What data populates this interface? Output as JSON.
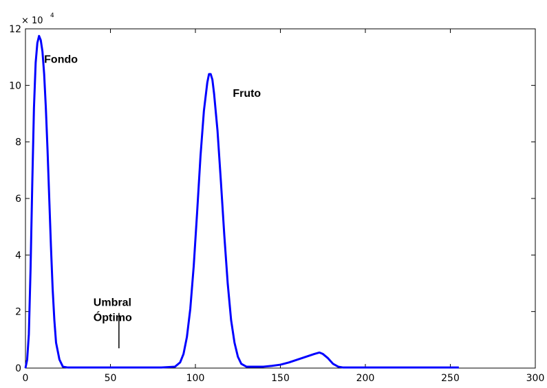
{
  "chart_data": {
    "type": "line",
    "title": "",
    "xlabel": "",
    "ylabel": "",
    "xlim": [
      0,
      300
    ],
    "ylim": [
      0,
      12
    ],
    "y_multiplier": {
      "base": "× 10",
      "exponent": "4"
    },
    "grid": false,
    "x_ticks": [
      "0",
      "50",
      "100",
      "150",
      "200",
      "250",
      "300"
    ],
    "y_ticks": [
      "0",
      "2",
      "4",
      "6",
      "8",
      "10",
      "12"
    ],
    "line_color": "#0000ff",
    "series": [
      {
        "x": [
          0,
          1,
          2,
          3,
          4,
          5,
          6,
          7,
          8,
          9,
          10,
          11,
          12,
          13,
          14,
          15,
          16,
          17,
          18,
          20,
          22,
          25,
          30,
          40,
          50,
          60,
          70,
          80,
          88,
          91,
          93,
          95,
          97,
          99,
          101,
          103,
          105,
          107,
          108,
          109,
          110,
          111,
          113,
          115,
          117,
          119,
          121,
          123,
          125,
          127,
          130,
          135,
          140,
          145,
          150,
          155,
          160,
          165,
          170,
          173,
          175,
          178,
          181,
          184,
          187,
          190,
          200,
          220,
          240,
          255
        ],
        "values": [
          0.0,
          0.3,
          1.2,
          3.5,
          6.5,
          9.2,
          10.8,
          11.5,
          11.75,
          11.6,
          11.2,
          10.4,
          9.2,
          7.7,
          6.0,
          4.3,
          2.8,
          1.7,
          0.9,
          0.3,
          0.05,
          0.02,
          0.02,
          0.02,
          0.02,
          0.02,
          0.02,
          0.02,
          0.05,
          0.2,
          0.5,
          1.1,
          2.1,
          3.6,
          5.5,
          7.5,
          9.1,
          10.1,
          10.4,
          10.4,
          10.2,
          9.7,
          8.4,
          6.6,
          4.7,
          3.0,
          1.7,
          0.9,
          0.4,
          0.15,
          0.05,
          0.05,
          0.05,
          0.08,
          0.12,
          0.2,
          0.3,
          0.4,
          0.5,
          0.55,
          0.5,
          0.35,
          0.15,
          0.05,
          0.02,
          0.02,
          0.02,
          0.02,
          0.02,
          0.02
        ]
      }
    ],
    "annotations": [
      {
        "lines": [
          "Fondo"
        ],
        "x": 11,
        "y": 10.8
      },
      {
        "lines": [
          "Fruto"
        ],
        "x": 122,
        "y": 9.6
      },
      {
        "lines": [
          "Umbral",
          "Óptimo"
        ],
        "x": 40,
        "y": 2.2,
        "marker_x": 55,
        "marker_y1": 0.7,
        "marker_y2": 1.95
      }
    ]
  }
}
